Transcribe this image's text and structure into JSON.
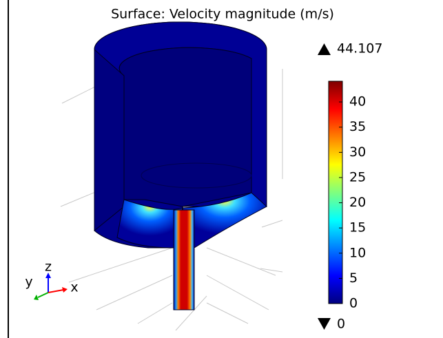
{
  "chart_data": {
    "type": "surface",
    "title": "Surface: Velocity magnitude (m/s)",
    "max": 44.107,
    "min": 0,
    "cticks": [
      0,
      5,
      10,
      15,
      20,
      25,
      30,
      35,
      40
    ],
    "colormap": [
      "#00007f",
      "#0000ff",
      "#007fff",
      "#00ffff",
      "#7fff7f",
      "#ffff00",
      "#ff7f00",
      "#ff0000",
      "#7f0000"
    ],
    "axes": {
      "x": "x",
      "y": "y",
      "z": "z"
    }
  }
}
